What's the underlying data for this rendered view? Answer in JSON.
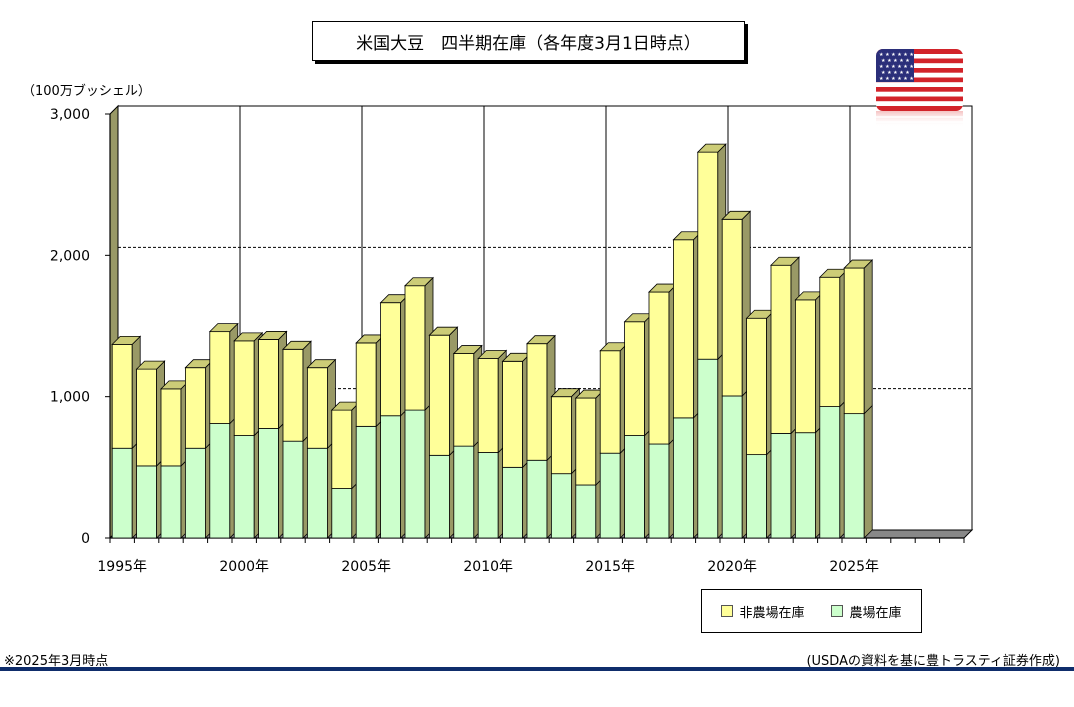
{
  "title": "米国大豆　四半期在庫（各年度3月1日時点）",
  "unit_label": "（100万ブッシェル）",
  "footnote": "※2025年3月時点",
  "source": "(USDAの資料を基に豊トラスティ証券作成)",
  "flag": {
    "icon": "us-flag-icon"
  },
  "colors": {
    "farm": "#ccffcc",
    "nonfarm": "#ffff99",
    "side": "#999966",
    "top": "#cccc77",
    "backwall": "#999966",
    "rule": "#0f2d6b"
  },
  "chart_data": {
    "type": "bar",
    "stacked": true,
    "title": "米国大豆　四半期在庫（各年度3月1日時点）",
    "ylabel": "（100万ブッシェル）",
    "ylim": [
      0,
      3000
    ],
    "yticks": [
      "0",
      "1,000",
      "2,000",
      "3,000"
    ],
    "ytick_values": [
      0,
      1000,
      2000,
      3000
    ],
    "years": [
      1995,
      1996,
      1997,
      1998,
      1999,
      2000,
      2001,
      2002,
      2003,
      2004,
      2005,
      2006,
      2007,
      2008,
      2009,
      2010,
      2011,
      2012,
      2013,
      2014,
      2015,
      2016,
      2017,
      2018,
      2019,
      2020,
      2021,
      2022,
      2023,
      2024,
      2025,
      2026,
      2027,
      2028,
      2029
    ],
    "x_tick_labels": [
      {
        "year": 1995,
        "label": "1995年"
      },
      {
        "year": 2000,
        "label": "2000年"
      },
      {
        "year": 2005,
        "label": "2005年"
      },
      {
        "year": 2010,
        "label": "2010年"
      },
      {
        "year": 2015,
        "label": "2015年"
      },
      {
        "year": 2020,
        "label": "2020年"
      },
      {
        "year": 2025,
        "label": "2025年"
      }
    ],
    "legend": [
      "非農場在庫",
      "農場在庫"
    ],
    "legend_placement": "bottom-right",
    "grid": true,
    "series": [
      {
        "name": "農場在庫",
        "values": [
          635,
          510,
          510,
          635,
          810,
          725,
          775,
          685,
          635,
          350,
          790,
          865,
          905,
          585,
          650,
          605,
          500,
          550,
          455,
          375,
          600,
          725,
          665,
          850,
          1265,
          1005,
          590,
          740,
          745,
          930,
          880,
          null,
          null,
          null,
          null
        ]
      },
      {
        "name": "非農場在庫",
        "values": [
          735,
          685,
          545,
          570,
          650,
          670,
          630,
          650,
          570,
          555,
          590,
          800,
          880,
          850,
          655,
          665,
          750,
          825,
          545,
          615,
          725,
          805,
          1075,
          1260,
          1465,
          1250,
          965,
          1190,
          940,
          915,
          1030,
          null,
          null,
          null,
          null
        ]
      }
    ]
  }
}
